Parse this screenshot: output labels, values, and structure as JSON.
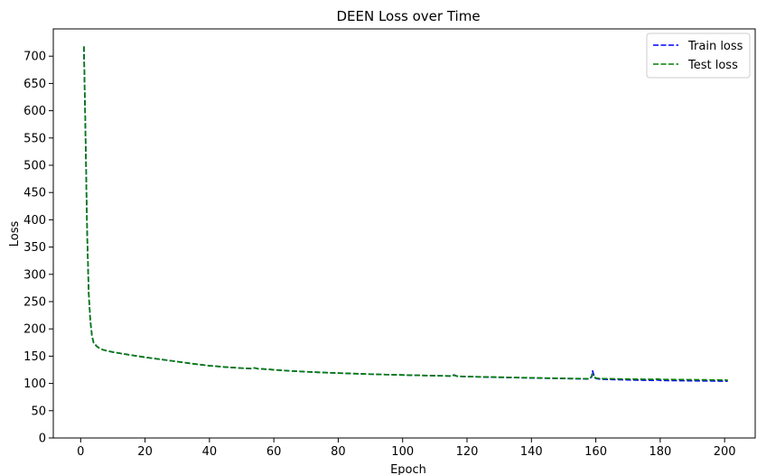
{
  "chart_data": {
    "type": "line",
    "title": "DEEN Loss over Time",
    "xlabel": "Epoch",
    "ylabel": "Loss",
    "xlim": [
      -8.5,
      209.5
    ],
    "ylim": [
      0,
      750
    ],
    "xticks": [
      0,
      20,
      40,
      60,
      80,
      100,
      120,
      140,
      160,
      180,
      200
    ],
    "yticks": [
      0,
      50,
      100,
      150,
      200,
      250,
      300,
      350,
      400,
      450,
      500,
      550,
      600,
      650,
      700
    ],
    "grid": false,
    "legend_position": "top-right",
    "series": [
      {
        "name": "Train loss",
        "color": "#0000ff",
        "linestyle": "dashed",
        "x": [
          1,
          1.5,
          2,
          2.5,
          3,
          3.5,
          4,
          5,
          6,
          7,
          8,
          10,
          12,
          15,
          20,
          25,
          30,
          35,
          40,
          45,
          50,
          53,
          54,
          55,
          58,
          60,
          65,
          70,
          75,
          80,
          85,
          90,
          95,
          100,
          105,
          110,
          115,
          116,
          117,
          120,
          125,
          130,
          135,
          140,
          145,
          150,
          155,
          158,
          158.7,
          159,
          159.4,
          159.8,
          160.3,
          161,
          162,
          165,
          170,
          175,
          178,
          179,
          180,
          185,
          190,
          195,
          200,
          201
        ],
        "y": [
          718,
          560,
          380,
          265,
          215,
          188,
          175,
          168,
          164,
          161.5,
          160,
          157.5,
          155.5,
          152.5,
          148,
          144,
          140,
          136,
          132.5,
          130,
          128,
          127,
          128.5,
          127,
          126,
          125,
          123,
          121.5,
          120,
          119,
          118,
          117,
          116.2,
          115.5,
          114.8,
          114.2,
          113.6,
          115.5,
          113,
          112.5,
          111.8,
          111.2,
          110.6,
          110,
          109.5,
          109,
          108.5,
          108.2,
          112,
          123,
          114,
          110,
          108.8,
          108.2,
          107.8,
          107.2,
          106.5,
          106,
          105.8,
          106.5,
          105.6,
          105.2,
          104.9,
          104.6,
          104.3,
          104.2
        ]
      },
      {
        "name": "Test loss",
        "color": "#008000",
        "linestyle": "dashed",
        "x": [
          1,
          1.5,
          2,
          2.5,
          3,
          3.5,
          4,
          5,
          6,
          7,
          8,
          10,
          12,
          15,
          20,
          25,
          30,
          35,
          40,
          45,
          50,
          53,
          54,
          55,
          58,
          60,
          65,
          70,
          75,
          80,
          85,
          90,
          95,
          100,
          105,
          110,
          115,
          116,
          117,
          120,
          125,
          130,
          135,
          140,
          145,
          150,
          155,
          158,
          158.7,
          159,
          159.4,
          159.8,
          160.3,
          161,
          162,
          165,
          170,
          175,
          178,
          179,
          180,
          185,
          190,
          195,
          200,
          201
        ],
        "y": [
          718,
          560,
          380,
          265,
          215,
          188,
          175,
          168,
          164,
          161.5,
          160,
          157.5,
          155.5,
          152.5,
          148,
          144,
          140,
          136,
          132.5,
          130,
          128,
          127.5,
          128.5,
          127,
          126,
          125,
          123,
          121.5,
          120,
          119,
          118,
          117,
          116.2,
          115.5,
          114.8,
          114.2,
          113.6,
          114.8,
          113.2,
          112.6,
          112,
          111.5,
          110.9,
          110.3,
          109.8,
          109.3,
          108.8,
          108.5,
          113,
          117,
          113,
          110.5,
          109.6,
          109.2,
          108.9,
          108.5,
          108,
          107.7,
          107.5,
          108.2,
          107.4,
          107.1,
          106.8,
          106.5,
          106.2,
          106.1
        ]
      }
    ]
  }
}
